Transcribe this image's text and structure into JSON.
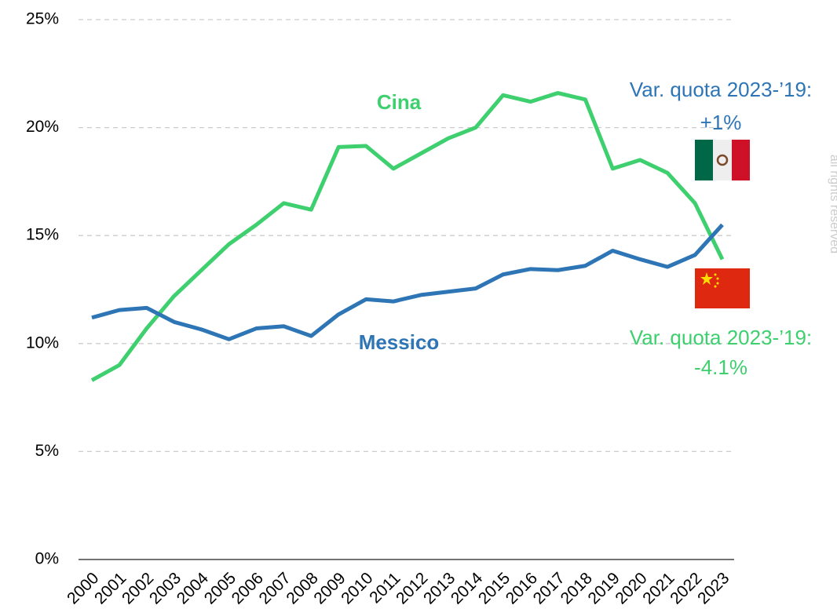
{
  "chart_data": {
    "type": "line",
    "x": [
      "2000",
      "2001",
      "2002",
      "2003",
      "2004",
      "2005",
      "2006",
      "2007",
      "2008",
      "2009",
      "2010",
      "2011",
      "2012",
      "2013",
      "2014",
      "2015",
      "2016",
      "2017",
      "2018",
      "2019",
      "2020",
      "2021",
      "2022",
      "2023"
    ],
    "series": [
      {
        "name": "Cina",
        "color": "#3ecf6e",
        "values": [
          8.3,
          9.0,
          10.7,
          12.2,
          13.4,
          14.6,
          15.5,
          16.5,
          16.2,
          19.1,
          19.15,
          18.1,
          18.8,
          19.5,
          20.0,
          21.5,
          21.2,
          21.6,
          21.3,
          18.1,
          18.5,
          17.9,
          16.5,
          13.9
        ]
      },
      {
        "name": "Messico",
        "color": "#2e75b6",
        "values": [
          11.2,
          11.55,
          11.65,
          11.0,
          10.65,
          10.2,
          10.7,
          10.8,
          10.35,
          11.35,
          12.05,
          11.95,
          12.25,
          12.4,
          12.55,
          13.2,
          13.45,
          13.4,
          13.6,
          14.3,
          13.9,
          13.55,
          14.1,
          15.5
        ]
      }
    ],
    "ylim": [
      0,
      25
    ],
    "yticks": [
      {
        "value": 0,
        "label": "0%"
      },
      {
        "value": 5,
        "label": "5%"
      },
      {
        "value": 10,
        "label": "10%"
      },
      {
        "value": 15,
        "label": "15%"
      },
      {
        "value": 20,
        "label": "20%"
      },
      {
        "value": 25,
        "label": "25%"
      }
    ],
    "grid": true,
    "annotations": [
      "Var. quota 2023-’19:",
      "+1%",
      "Var. quota 2023-’19:",
      "-4.1%"
    ],
    "watermark": "all rights reserved"
  }
}
